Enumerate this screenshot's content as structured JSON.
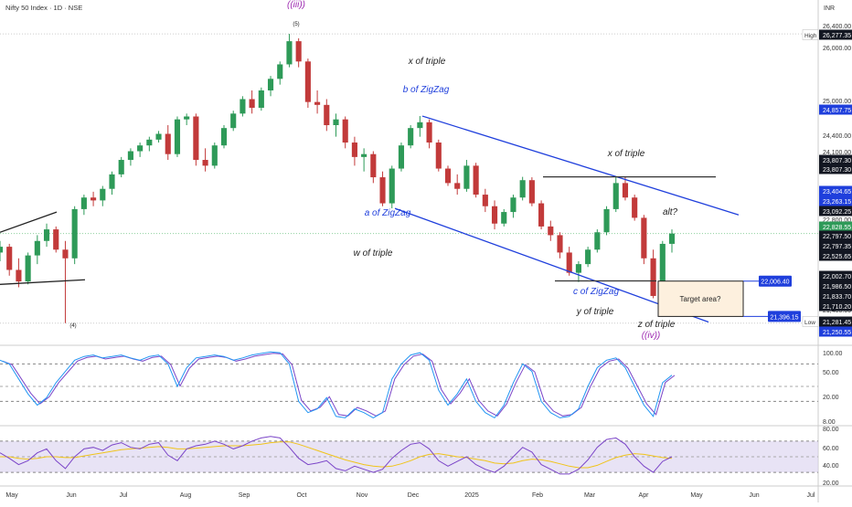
{
  "header": {
    "title": "Nifty 50 Index · 1D · NSE",
    "currency": "INR"
  },
  "colors": {
    "up": "#2e9a58",
    "down": "#c23a3a",
    "channel": "#1f3fdc",
    "wave_purple": "#9c27b0",
    "rsi": "#7b45c8",
    "rsi2": "#2196f3",
    "osc_band": "#d9d0ee",
    "osc_yellow": "#f0c419",
    "label_blue": "#1f3fdc",
    "label_dark": "#222222",
    "target_fill": "#fdf0de"
  },
  "chart_data": {
    "type": "candlestick",
    "x_labels": [
      "May",
      "Jun",
      "Jul",
      "Aug",
      "Sep",
      "Oct",
      "Nov",
      "Dec",
      "2025",
      "Feb",
      "Mar",
      "Apr",
      "May",
      "Jun",
      "Jul"
    ],
    "price_axis_ticks": [
      "26,400.00",
      "26,000.00",
      "25,000.00",
      "24,400.00",
      "24,100.00",
      "22,800.00",
      "21,400.00"
    ],
    "price_levels": [
      {
        "label": "High",
        "value": "26,277.35",
        "style": "dark"
      },
      {
        "label": "",
        "value": "24,857.75",
        "style": "blue"
      },
      {
        "label": "",
        "value": "23,807.30",
        "style": "dark"
      },
      {
        "label": "",
        "value": "23,807.30",
        "style": "dark"
      },
      {
        "label": "",
        "value": "23,404.65",
        "style": "blue"
      },
      {
        "label": "",
        "value": "23,263.15",
        "style": "blue"
      },
      {
        "label": "",
        "value": "23,092.25",
        "style": "dark"
      },
      {
        "label": "",
        "value": "22,828.55",
        "style": "green"
      },
      {
        "label": "",
        "value": "22,797.50",
        "style": "dark"
      },
      {
        "label": "",
        "value": "22,797.35",
        "style": "dark"
      },
      {
        "label": "",
        "value": "22,525.65",
        "style": "dark"
      },
      {
        "label": "",
        "value": "22,002.70",
        "style": "dark"
      },
      {
        "label": "",
        "value": "21,986.50",
        "style": "dark"
      },
      {
        "label": "",
        "value": "21,833.70",
        "style": "dark"
      },
      {
        "label": "",
        "value": "21,710.20",
        "style": "dark"
      },
      {
        "label": "Low",
        "value": "21,281.45",
        "style": "dark"
      },
      {
        "label": "",
        "value": "21,250.55",
        "style": "blue"
      }
    ],
    "level_tags": [
      {
        "value": "22,006.40"
      },
      {
        "value": "21,396.15"
      }
    ],
    "wave_labels": [
      {
        "text": "((iii))",
        "style": "purple"
      },
      {
        "text": "(5)",
        "style": "dark"
      },
      {
        "text": "(4)",
        "style": "dark"
      },
      {
        "text": "x of triple",
        "style": "dark"
      },
      {
        "text": "b of ZigZag",
        "style": "blue"
      },
      {
        "text": "a of ZigZag",
        "style": "blue"
      },
      {
        "text": "w of triple",
        "style": "dark"
      },
      {
        "text": "x of triple",
        "style": "dark"
      },
      {
        "text": "c of ZigZag",
        "style": "blue"
      },
      {
        "text": "y of triple",
        "style": "dark"
      },
      {
        "text": "z of triple",
        "style": "dark"
      },
      {
        "text": "((iv))",
        "style": "purple"
      },
      {
        "text": "alt?",
        "style": "dark"
      }
    ],
    "target_box": {
      "label": "Target area?",
      "upper": 22006.4,
      "lower": 21396.15
    },
    "price_series": [
      {
        "o": 22500,
        "h": 22700,
        "l": 22350,
        "c": 22600
      },
      {
        "o": 22600,
        "h": 22650,
        "l": 22100,
        "c": 22200
      },
      {
        "o": 22200,
        "h": 22400,
        "l": 21900,
        "c": 22000
      },
      {
        "o": 22000,
        "h": 22500,
        "l": 21950,
        "c": 22450
      },
      {
        "o": 22450,
        "h": 22800,
        "l": 22300,
        "c": 22700
      },
      {
        "o": 22700,
        "h": 23000,
        "l": 22600,
        "c": 22900
      },
      {
        "o": 22900,
        "h": 22950,
        "l": 22500,
        "c": 22550
      },
      {
        "o": 22550,
        "h": 22700,
        "l": 21280,
        "c": 22400
      },
      {
        "o": 22400,
        "h": 23300,
        "l": 22300,
        "c": 23250
      },
      {
        "o": 23250,
        "h": 23500,
        "l": 23150,
        "c": 23450
      },
      {
        "o": 23450,
        "h": 23550,
        "l": 23300,
        "c": 23400
      },
      {
        "o": 23400,
        "h": 23650,
        "l": 23300,
        "c": 23600
      },
      {
        "o": 23600,
        "h": 23900,
        "l": 23500,
        "c": 23850
      },
      {
        "o": 23850,
        "h": 24150,
        "l": 23800,
        "c": 24100
      },
      {
        "o": 24100,
        "h": 24300,
        "l": 24000,
        "c": 24250
      },
      {
        "o": 24250,
        "h": 24400,
        "l": 24150,
        "c": 24350
      },
      {
        "o": 24350,
        "h": 24500,
        "l": 24250,
        "c": 24450
      },
      {
        "o": 24450,
        "h": 24600,
        "l": 24400,
        "c": 24550
      },
      {
        "o": 24550,
        "h": 24700,
        "l": 24100,
        "c": 24200
      },
      {
        "o": 24200,
        "h": 24850,
        "l": 24150,
        "c": 24800
      },
      {
        "o": 24800,
        "h": 24900,
        "l": 24700,
        "c": 24850
      },
      {
        "o": 24850,
        "h": 24900,
        "l": 24000,
        "c": 24100
      },
      {
        "o": 24100,
        "h": 24300,
        "l": 23900,
        "c": 24000
      },
      {
        "o": 24000,
        "h": 24400,
        "l": 23950,
        "c": 24350
      },
      {
        "o": 24350,
        "h": 24700,
        "l": 24300,
        "c": 24650
      },
      {
        "o": 24650,
        "h": 24950,
        "l": 24600,
        "c": 24900
      },
      {
        "o": 24900,
        "h": 25200,
        "l": 24850,
        "c": 25150
      },
      {
        "o": 25150,
        "h": 25300,
        "l": 24900,
        "c": 25000
      },
      {
        "o": 25000,
        "h": 25350,
        "l": 24950,
        "c": 25300
      },
      {
        "o": 25300,
        "h": 25550,
        "l": 25200,
        "c": 25500
      },
      {
        "o": 25500,
        "h": 25800,
        "l": 25400,
        "c": 25750
      },
      {
        "o": 25750,
        "h": 26277,
        "l": 25700,
        "c": 26150
      },
      {
        "o": 26150,
        "h": 26200,
        "l": 25700,
        "c": 25800
      },
      {
        "o": 25800,
        "h": 25850,
        "l": 25000,
        "c": 25100
      },
      {
        "o": 25100,
        "h": 25300,
        "l": 24900,
        "c": 25050
      },
      {
        "o": 25050,
        "h": 25150,
        "l": 24600,
        "c": 24700
      },
      {
        "o": 24700,
        "h": 24900,
        "l": 24500,
        "c": 24800
      },
      {
        "o": 24800,
        "h": 24850,
        "l": 24300,
        "c": 24400
      },
      {
        "o": 24400,
        "h": 24500,
        "l": 24000,
        "c": 24150
      },
      {
        "o": 24150,
        "h": 24300,
        "l": 23900,
        "c": 24200
      },
      {
        "o": 24200,
        "h": 24250,
        "l": 23700,
        "c": 23800
      },
      {
        "o": 23800,
        "h": 23900,
        "l": 23300,
        "c": 23350
      },
      {
        "o": 23350,
        "h": 24000,
        "l": 23263,
        "c": 23950
      },
      {
        "o": 23950,
        "h": 24400,
        "l": 23900,
        "c": 24350
      },
      {
        "o": 24350,
        "h": 24700,
        "l": 24300,
        "c": 24650
      },
      {
        "o": 24650,
        "h": 24857,
        "l": 24500,
        "c": 24750
      },
      {
        "o": 24750,
        "h": 24800,
        "l": 24300,
        "c": 24400
      },
      {
        "o": 24400,
        "h": 24450,
        "l": 23900,
        "c": 23950
      },
      {
        "o": 23950,
        "h": 24000,
        "l": 23650,
        "c": 23700
      },
      {
        "o": 23700,
        "h": 23850,
        "l": 23500,
        "c": 23600
      },
      {
        "o": 23600,
        "h": 24100,
        "l": 23550,
        "c": 24000
      },
      {
        "o": 24000,
        "h": 24050,
        "l": 23450,
        "c": 23500
      },
      {
        "o": 23500,
        "h": 23600,
        "l": 23200,
        "c": 23300
      },
      {
        "o": 23300,
        "h": 23400,
        "l": 22900,
        "c": 23000
      },
      {
        "o": 23000,
        "h": 23250,
        "l": 22950,
        "c": 23200
      },
      {
        "o": 23200,
        "h": 23500,
        "l": 23100,
        "c": 23450
      },
      {
        "o": 23450,
        "h": 23807,
        "l": 23400,
        "c": 23750
      },
      {
        "o": 23750,
        "h": 23800,
        "l": 23300,
        "c": 23350
      },
      {
        "o": 23350,
        "h": 23400,
        "l": 22900,
        "c": 22950
      },
      {
        "o": 22950,
        "h": 23050,
        "l": 22700,
        "c": 22800
      },
      {
        "o": 22800,
        "h": 22850,
        "l": 22400,
        "c": 22500
      },
      {
        "o": 22500,
        "h": 22600,
        "l": 22100,
        "c": 22150
      },
      {
        "o": 22150,
        "h": 22350,
        "l": 21990,
        "c": 22300
      },
      {
        "o": 22300,
        "h": 22600,
        "l": 22250,
        "c": 22550
      },
      {
        "o": 22550,
        "h": 22900,
        "l": 22500,
        "c": 22850
      },
      {
        "o": 22850,
        "h": 23300,
        "l": 22800,
        "c": 23250
      },
      {
        "o": 23250,
        "h": 23800,
        "l": 23200,
        "c": 23700
      },
      {
        "o": 23700,
        "h": 23807,
        "l": 23400,
        "c": 23450
      },
      {
        "o": 23450,
        "h": 23500,
        "l": 23050,
        "c": 23100
      },
      {
        "o": 23100,
        "h": 23150,
        "l": 22300,
        "c": 22400
      },
      {
        "o": 22400,
        "h": 22550,
        "l": 21710,
        "c": 21750
      },
      {
        "o": 21750,
        "h": 22700,
        "l": 21700,
        "c": 22650
      },
      {
        "o": 22650,
        "h": 22900,
        "l": 22500,
        "c": 22828
      }
    ],
    "rsi_axis_ticks": [
      "100.00",
      "50.00",
      "20.00",
      "8.00"
    ],
    "osc_axis_ticks": [
      "80.00",
      "60.00",
      "40.00",
      "20.00"
    ],
    "rsi_series": [
      85,
      80,
      60,
      40,
      25,
      35,
      55,
      70,
      85,
      90,
      92,
      88,
      90,
      92,
      88,
      85,
      90,
      92,
      80,
      50,
      75,
      88,
      90,
      92,
      90,
      85,
      88,
      92,
      94,
      96,
      95,
      80,
      30,
      15,
      20,
      35,
      10,
      8,
      20,
      15,
      8,
      15,
      60,
      80,
      92,
      95,
      85,
      45,
      25,
      40,
      60,
      30,
      15,
      8,
      25,
      55,
      80,
      70,
      30,
      15,
      8,
      10,
      20,
      50,
      75,
      85,
      88,
      75,
      50,
      25,
      10,
      55,
      65
    ],
    "osc_series": [
      55,
      48,
      40,
      45,
      55,
      60,
      45,
      35,
      50,
      60,
      62,
      58,
      65,
      68,
      62,
      60,
      66,
      68,
      52,
      45,
      60,
      64,
      66,
      70,
      66,
      60,
      64,
      70,
      74,
      76,
      74,
      62,
      48,
      40,
      42,
      45,
      35,
      32,
      38,
      34,
      30,
      34,
      48,
      58,
      66,
      68,
      60,
      45,
      38,
      44,
      50,
      40,
      34,
      30,
      38,
      50,
      62,
      56,
      40,
      34,
      28,
      28,
      34,
      46,
      62,
      72,
      74,
      66,
      50,
      38,
      30,
      44,
      50
    ],
    "osc_signal": [
      50,
      50,
      48,
      47,
      48,
      50,
      50,
      49,
      49,
      51,
      53,
      55,
      57,
      59,
      60,
      61,
      62,
      63,
      62,
      60,
      60,
      61,
      62,
      63,
      64,
      64,
      64,
      65,
      66,
      68,
      69,
      69,
      66,
      62,
      58,
      54,
      50,
      46,
      43,
      40,
      38,
      37,
      38,
      41,
      45,
      50,
      53,
      54,
      52,
      50,
      49,
      47,
      45,
      42,
      41,
      42,
      45,
      47,
      46,
      44,
      41,
      38,
      36,
      36,
      39,
      44,
      49,
      52,
      54,
      53,
      51,
      49,
      48
    ]
  }
}
